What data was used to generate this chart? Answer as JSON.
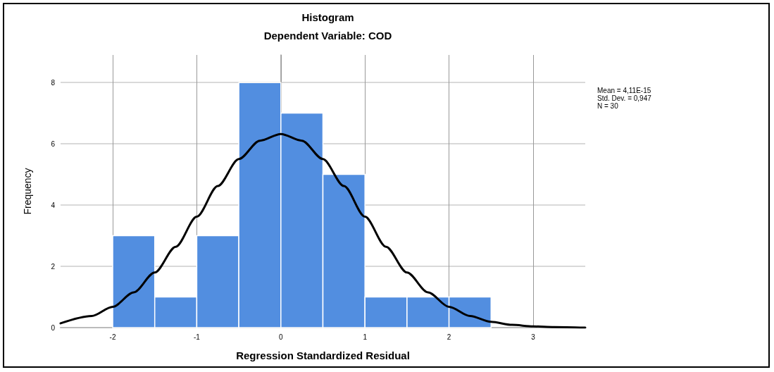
{
  "chart_data": {
    "type": "histogram",
    "title": "Histogram",
    "subtitle": "Dependent Variable: COD",
    "xlabel": "Regression Standardized Residual",
    "ylabel": "Frequency",
    "bins": [
      -2,
      -1.5,
      -1,
      -0.5,
      0,
      0.5,
      1,
      1.5,
      2,
      2.5
    ],
    "values": [
      3,
      1,
      3,
      8,
      7,
      5,
      1,
      1,
      1
    ],
    "color": "#528ee0",
    "series": [
      {
        "type": "line",
        "color": "#000000",
        "x": [
          -2.62,
          -2.25,
          -2,
          -1.75,
          -1.5,
          -1.25,
          -1,
          -0.75,
          -0.5,
          -0.25,
          0,
          0.25,
          0.5,
          0.75,
          1,
          1.25,
          1.5,
          1.75,
          2,
          2.25,
          2.5,
          2.75,
          3,
          3.25,
          3.62
        ],
        "values": [
          0.14,
          0.38,
          0.68,
          1.15,
          1.8,
          2.64,
          3.62,
          4.62,
          5.5,
          6.1,
          6.32,
          6.1,
          5.5,
          4.62,
          3.62,
          2.64,
          1.8,
          1.15,
          0.68,
          0.38,
          0.19,
          0.09,
          0.04,
          0.02,
          0
        ]
      }
    ],
    "xlim": [
      -2.62,
      3.62
    ],
    "xticks": [
      -2,
      -1,
      0,
      1,
      2,
      3
    ],
    "ylim": [
      0,
      8.9
    ],
    "yticks": [
      0,
      2,
      4,
      6,
      8
    ],
    "grid": true,
    "marker": "none",
    "line_style": "solid",
    "annotations": [
      "Mean = 4,11E-15",
      "Std. Dev. = 0,947",
      "N = 30"
    ]
  }
}
